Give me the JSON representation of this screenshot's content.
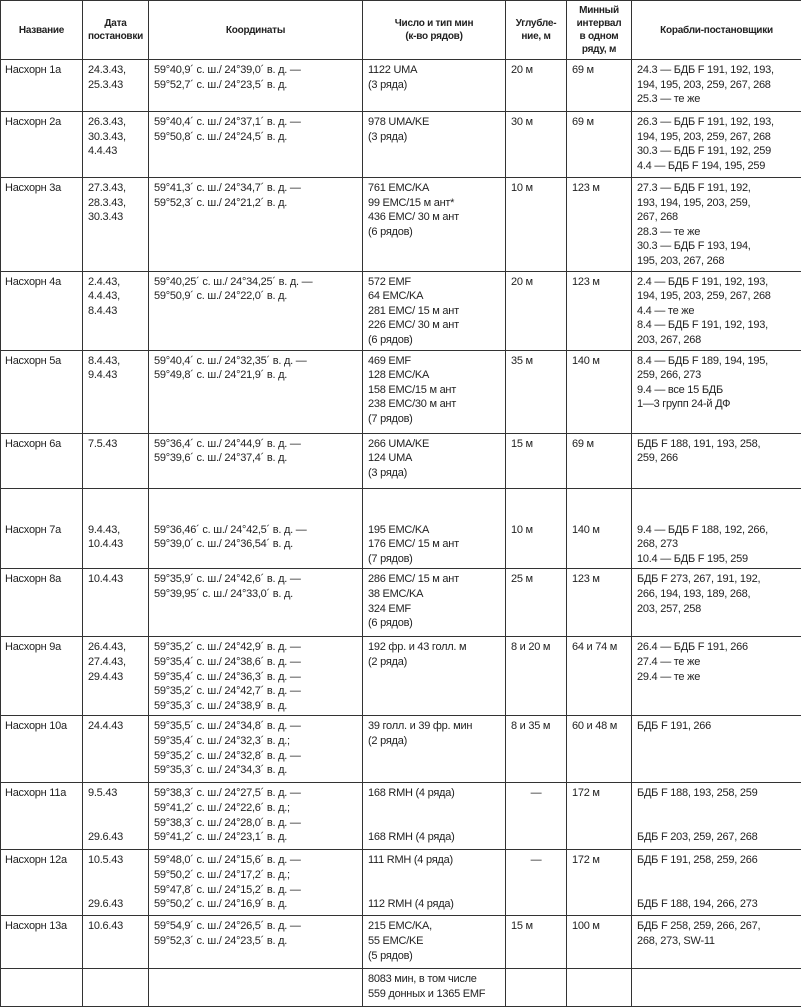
{
  "headers": [
    "Название",
    "Дата\nпостановки",
    "Координаты",
    "Число и тип мин\n(к-во рядов)",
    "Углубле-\nние, м",
    "Минный\nинтервал\nв одном\nряду, м",
    "Корабли-постановщики"
  ],
  "rows": [
    [
      "Насхорн 1а",
      "24.3.43,\n25.3.43",
      "59°40,9´ с. ш./ 24°39,0´ в. д. —\n59°52,7´ с. ш./ 24°23,5´ в. д.",
      "1122 UMA\n(3 ряда)",
      "20 м",
      "69 м",
      "24.3 — БДБ F 191, 192, 193,\n194, 195, 203, 259, 267, 268\n25.3 — те же"
    ],
    [
      "Насхорн 2а",
      "26.3.43,\n30.3.43,\n4.4.43",
      "59°40,4´ с. ш./ 24°37,1´ в. д. —\n59°50,8´ с. ш./ 24°24,5´ в. д.",
      "978 UMA/KE\n(3 ряда)",
      "30 м",
      "69 м",
      "26.3 — БДБ F 191, 192, 193,\n194, 195, 203, 259, 267, 268\n30.3 — БДБ F 191, 192, 259\n4.4 — БДБ F 194, 195, 259"
    ],
    [
      "Насхорн 3а",
      "27.3.43,\n28.3.43,\n30.3.43",
      "59°41,3´ с. ш./ 24°34,7´ в. д. —\n59°52,3´ с. ш./ 24°21,2´ в. д.",
      "761 EMC/KA\n99 EMC/15 м ант*\n436 EMC/ 30 м ант\n(6 рядов)",
      "10 м",
      "123 м",
      "27.3 — БДБ F 191, 192,\n193, 194, 195, 203, 259,\n267, 268\n28.3 — те же\n30.3 — БДБ F 193, 194,\n195, 203, 267, 268"
    ],
    [
      "Насхорн 4а",
      "2.4.43,\n4.4.43,\n8.4.43",
      "59°40,25´ с. ш./ 24°34,25´ в. д. —\n59°50,9´ с. ш./ 24°22,0´ в. д.",
      "572 EMF\n64 EMC/KA\n281 EMC/ 15 м ант\n226 EMC/ 30 м ант\n(6 рядов)",
      "20 м",
      "123 м",
      "2.4 — БДБ F 191, 192, 193,\n194, 195, 203, 259, 267, 268\n4.4 — те же\n8.4 — БДБ F 191, 192, 193,\n203, 267, 268"
    ],
    [
      "Насхорн 5а",
      "8.4.43,\n9.4.43",
      "59°40,4´ с. ш./ 24°32,35´ в. д. —\n59°49,8´ с. ш./ 24°21,9´ в. д.",
      "469 EMF\n128 EMC/KA\n158 EMC/15 м ант\n238 EMC/30 м ант\n(7 рядов)",
      "35 м",
      "140 м",
      "8.4 — БДБ F 189, 194, 195,\n259, 266, 273\n9.4 — все 15 БДБ\n1—3 групп 24-й ДФ"
    ],
    [
      "Насхорн 6а",
      "7.5.43",
      "59°36,4´ с. ш./ 24°44,9´ в. д. —\n59°39,6´ с. ш./ 24°37,4´ в. д.",
      "266 UMA/KE\n124 UMA\n(3 ряда)",
      "15 м",
      "69 м",
      "БДБ F 188, 191, 193, 258,\n259, 266"
    ],
    [
      "Насхорн 7а",
      "9.4.43,\n10.4.43",
      "59°36,46´ с. ш./ 24°42,5´ в. д. —\n59°39,0´ с. ш./ 24°36,54´ в. д.",
      "195 EMC/KA\n176 EMC/ 15 м ант\n(7 рядов)",
      "10 м",
      "140 м",
      "9.4 — БДБ F 188, 192, 266,\n268, 273\n10.4 — БДБ F 195, 259"
    ],
    [
      "Насхорн 8а",
      "10.4.43",
      "59°35,9´ с. ш./ 24°42,6´ в. д. —\n59°39,95´ с. ш./ 24°33,0´ в. д.",
      "286 EMC/ 15 м ант\n38 EMC/KA\n324 EMF\n(6 рядов)",
      "25 м",
      "123 м",
      "БДБ F 273, 267, 191, 192,\n266, 194, 193, 189, 268,\n203, 257, 258"
    ],
    [
      "Насхорн 9а",
      "26.4.43,\n27.4.43,\n29.4.43",
      "59°35,2´ с. ш./ 24°42,9´ в. д. —\n59°35,4´ с. ш./ 24°38,6´ в. д. —\n59°35,4´ с. ш./ 24°36,3´ в. д. —\n59°35,2´ с. ш./ 24°42,7´ в. д. —\n59°35,3´ с. ш./ 24°38,9´ в. д.",
      "192 фр. и 43 голл. м\n(2 ряда)",
      "8 и 20 м",
      "64 и 74 м",
      "26.4 — БДБ F 191, 266\n27.4 — те же\n29.4 — те же"
    ],
    [
      "Насхорн 10а",
      "24.4.43",
      "59°35,5´ с. ш./ 24°34,8´ в. д. —\n59°35,4´ с. ш./ 24°32,3´ в. д.;\n59°35,2´ с. ш./ 24°32,8´ в. д. —\n59°35,3´ с. ш./ 24°34,3´ в. д.",
      "39 голл. и 39 фр. мин\n(2 ряда)",
      "8 и 35 м",
      "60 и 48 м",
      "БДБ F 191, 266"
    ],
    [
      "Насхорн 11а",
      "9.5.43\n\n\n29.6.43",
      "59°38,3´ с. ш./ 24°27,5´ в. д. —\n59°41,2´ с. ш./ 24°22,6´ в. д.;\n59°38,3´ с. ш./ 24°28,0´ в. д. —\n59°41,2´ с. ш./ 24°23,1´ в. д.",
      "168 RMH (4 ряда)\n\n\n168 RMH (4 ряда)",
      "—",
      "172 м",
      "БДБ F 188, 193, 258, 259\n\n\nБДБ F 203, 259, 267, 268"
    ],
    [
      "Насхорн 12а",
      "10.5.43\n\n\n29.6.43",
      "59°48,0´ с. ш./ 24°15,6´ в. д. —\n59°50,2´ с. ш./ 24°17,2´ в. д.;\n59°47,8´ с. ш./ 24°15,2´ в. д. —\n59°50,2´ с. ш./ 24°16,9´ в. д.",
      "111 RMH (4 ряда)\n\n\n112 RMH (4 ряда)",
      "—",
      "172 м",
      "БДБ F 191, 258, 259, 266\n\n\nБДБ F 188, 194, 266, 273"
    ],
    [
      "Насхорн 13а",
      "10.6.43",
      "59°54,9´ с. ш./ 24°26,5´ в. д. —\n59°52,3´ с. ш./ 24°23,5´ в. д.",
      "215 EMC/KA,\n55 EMC/KE\n(5 рядов)",
      "15 м",
      "100 м",
      "БДБ F 258, 259, 266, 267,\n268, 273, SW-11"
    ],
    [
      "",
      "",
      "",
      "8083 мин, в том числе\n559 донных и 1365 EMF",
      "",
      "",
      ""
    ]
  ]
}
